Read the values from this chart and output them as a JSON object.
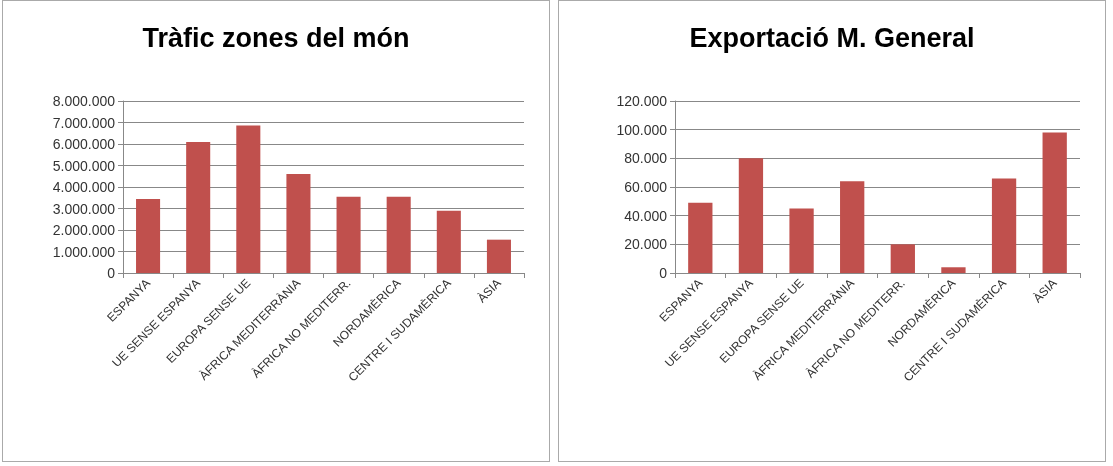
{
  "chart_data": [
    {
      "type": "bar",
      "title": "Tràfic zones del món",
      "categories": [
        "ESPANYA",
        "UE SENSE ESPANYA",
        "EUROPA SENSE UE",
        "ÀFRICA MEDITERRÀNIA",
        "ÀFRICA NO MEDITERR.",
        "NORDAMÈRICA",
        "CENTRE I SUDAMÈRICA",
        "ÀSIA"
      ],
      "values": [
        3440000,
        6090000,
        6860000,
        4610000,
        3550000,
        3550000,
        2890000,
        1550000
      ],
      "color": "#c0504d",
      "ylim": [
        0,
        8000000
      ],
      "yticks": [
        {
          "value": 0,
          "label": "0"
        },
        {
          "value": 1000000,
          "label": "1.000.000"
        },
        {
          "value": 2000000,
          "label": "2.000.000"
        },
        {
          "value": 3000000,
          "label": "3.000.000"
        },
        {
          "value": 4000000,
          "label": "4.000.000"
        },
        {
          "value": 5000000,
          "label": "5.000.000"
        },
        {
          "value": 6000000,
          "label": "6.000.000"
        },
        {
          "value": 7000000,
          "label": "7.000.000"
        },
        {
          "value": 8000000,
          "label": "8.000.000"
        }
      ],
      "grid": "y"
    },
    {
      "type": "bar",
      "title": "Exportació M. General",
      "categories": [
        "ESPANYA",
        "UE SENSE ESPANYA",
        "EUROPA SENSE UE",
        "ÀFRICA MEDITERRÀNIA",
        "ÀFRICA NO MEDITERR.",
        "NORDAMÈRICA",
        "CENTRE I SUDAMÈRICA",
        "ÀSIA"
      ],
      "values": [
        49000,
        80000,
        45000,
        64000,
        20000,
        4000,
        66000,
        98000
      ],
      "color": "#c0504d",
      "ylim": [
        0,
        120000
      ],
      "yticks": [
        {
          "value": 0,
          "label": "0"
        },
        {
          "value": 20000,
          "label": "20.000"
        },
        {
          "value": 40000,
          "label": "40.000"
        },
        {
          "value": 60000,
          "label": "60.000"
        },
        {
          "value": 80000,
          "label": "80.000"
        },
        {
          "value": 100000,
          "label": "100.000"
        },
        {
          "value": 120000,
          "label": "120.000"
        }
      ],
      "grid": "y"
    }
  ]
}
